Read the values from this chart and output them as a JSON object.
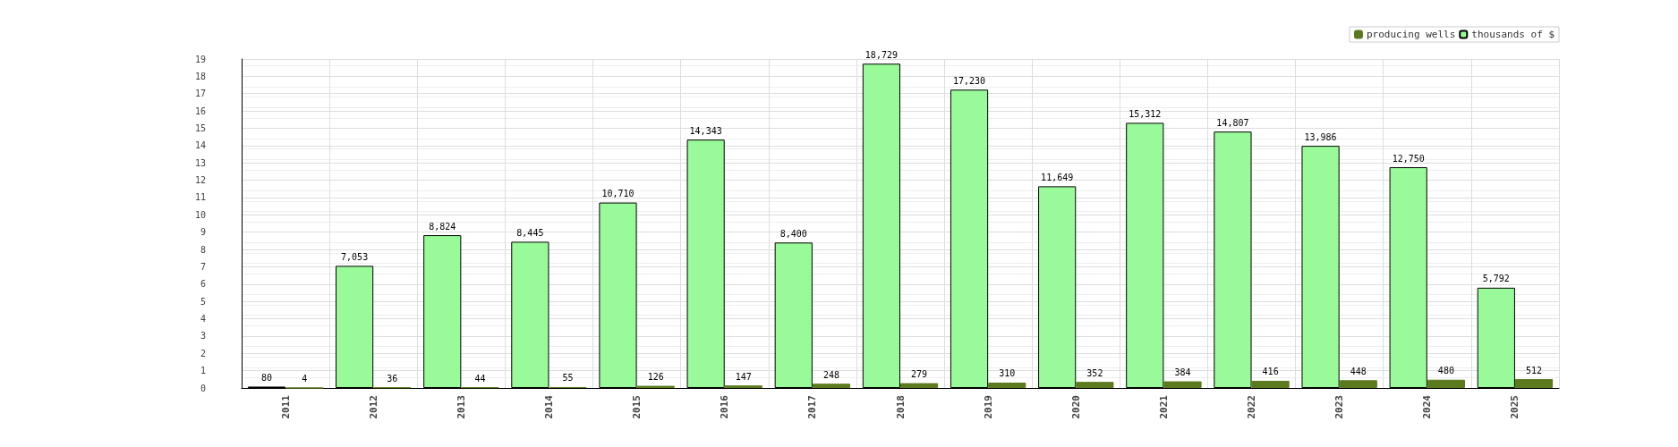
{
  "chart_data": {
    "type": "bar",
    "categories": [
      "2011",
      "2012",
      "2013",
      "2014",
      "2015",
      "2016",
      "2017",
      "2018",
      "2019",
      "2020",
      "2021",
      "2022",
      "2023",
      "2024",
      "2025"
    ],
    "series": [
      {
        "name": "thousands of $",
        "color": "#99fa99",
        "axis": "y2",
        "values": [
          80,
          7053,
          8824,
          8445,
          10710,
          14343,
          8400,
          18729,
          17230,
          11649,
          15312,
          14807,
          13986,
          12750,
          5792
        ],
        "value_labels": [
          "80",
          "7,053",
          "8,824",
          "8,445",
          "10,710",
          "14,343",
          "8,400",
          "18,729",
          "17,230",
          "11,649",
          "15,312",
          "14,807",
          "13,986",
          "12,750",
          "5,792"
        ]
      },
      {
        "name": "producing wells",
        "color": "#5b7a1e",
        "axis": "y2",
        "values": [
          4,
          36,
          44,
          55,
          126,
          147,
          248,
          279,
          310,
          352,
          384,
          416,
          448,
          480,
          512
        ],
        "value_labels": [
          "4",
          "36",
          "44",
          "55",
          "126",
          "147",
          "248",
          "279",
          "310",
          "352",
          "384",
          "416",
          "448",
          "480",
          "512"
        ]
      }
    ],
    "ylim": [
      0,
      19
    ],
    "yticks": [
      0,
      1,
      2,
      3,
      4,
      5,
      6,
      7,
      8,
      9,
      10,
      11,
      12,
      13,
      14,
      15,
      16,
      17,
      18,
      19
    ],
    "y2lim": [
      0,
      19000
    ],
    "grid": true,
    "legend": "top right"
  }
}
